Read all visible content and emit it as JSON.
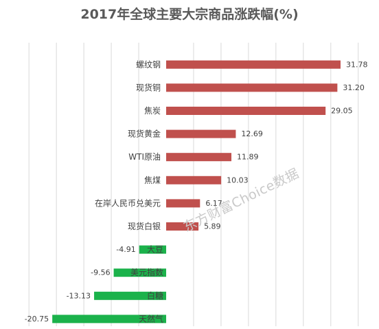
{
  "chart_data": {
    "type": "bar",
    "orientation": "horizontal",
    "title": "2017年全球主要大宗商品涨跌幅(%)",
    "categories": [
      "螺纹钢",
      "现货铜",
      "焦炭",
      "现货黄金",
      "WTI原油",
      "焦煤",
      "在岸人民币兑美元",
      "现货白银",
      "大豆",
      "美元指数",
      "白糖",
      "天然气"
    ],
    "values": [
      31.78,
      31.2,
      29.05,
      12.69,
      11.89,
      10.03,
      6.17,
      5.89,
      -4.91,
      -9.56,
      -13.13,
      -20.75
    ],
    "value_labels": [
      "31.78",
      "31.20",
      "29.05",
      "12.69",
      "11.89",
      "10.03",
      "6.17",
      "5.89",
      "-4.91",
      "-9.56",
      "-13.13",
      "-20.75"
    ],
    "xlim": [
      -25,
      35
    ],
    "grid": true,
    "colors": {
      "positive": "#c0504d",
      "negative": "#1bb24b"
    }
  },
  "watermark": "东方财富Choice数据"
}
